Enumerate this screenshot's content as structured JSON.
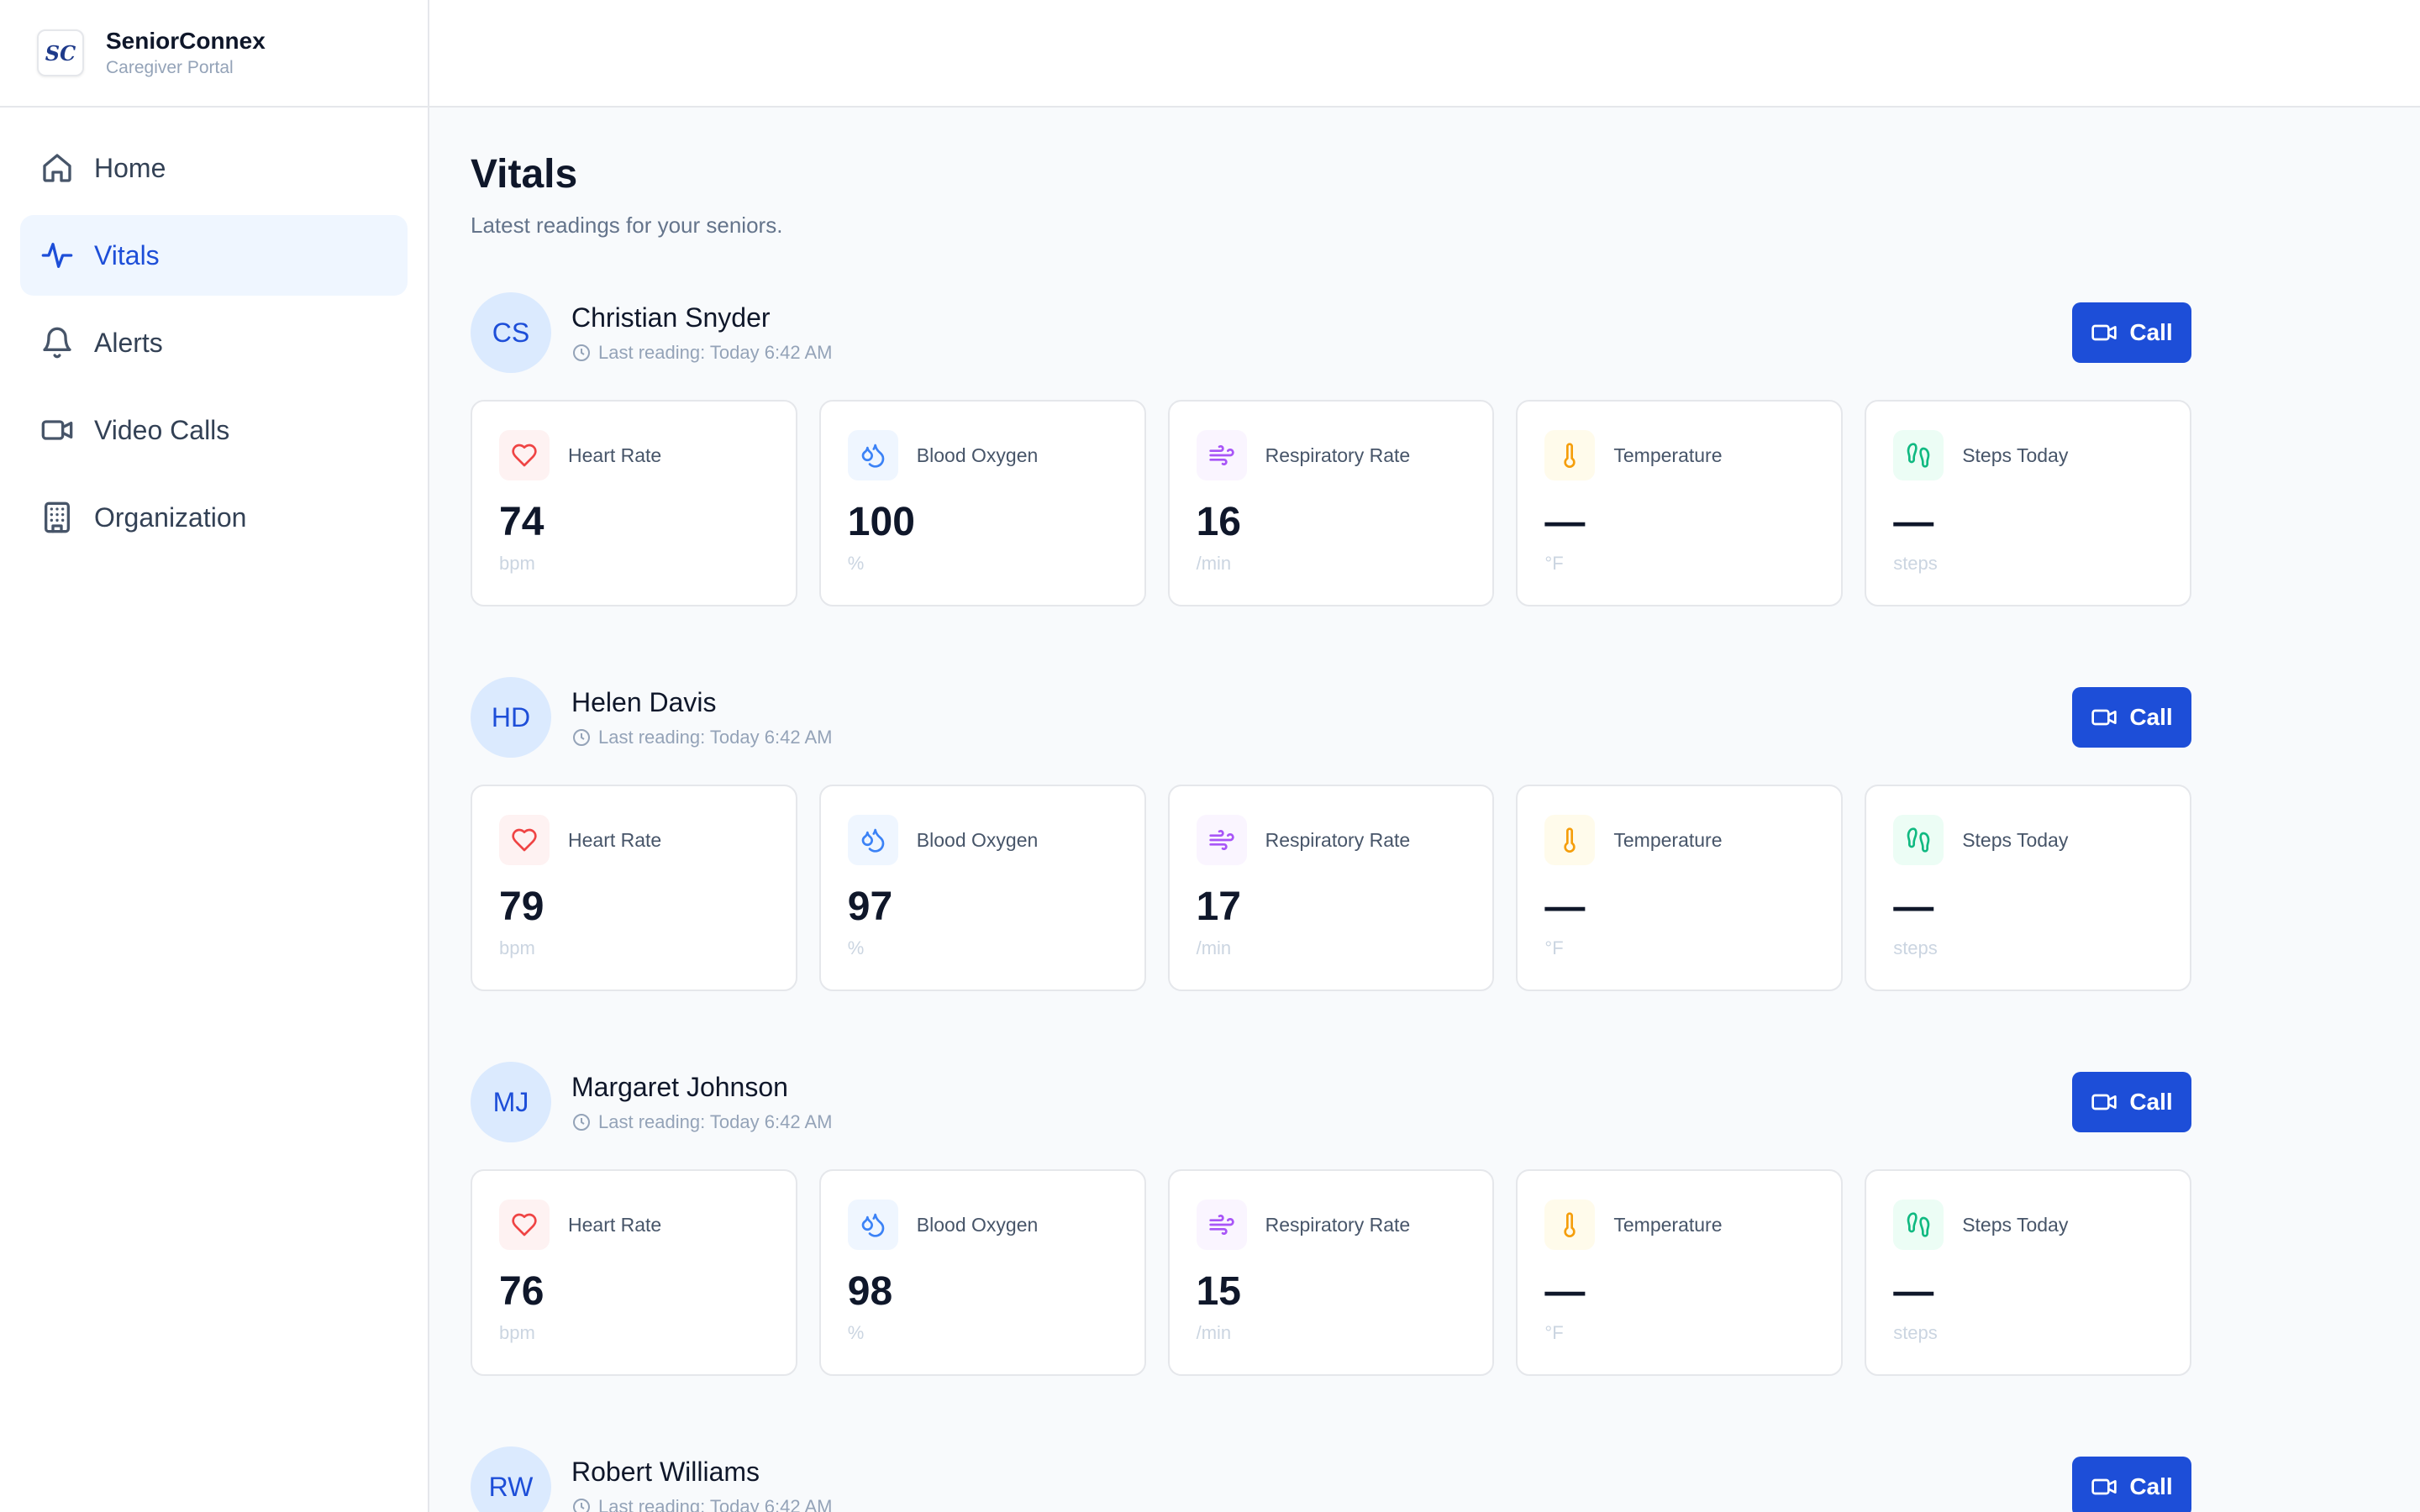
{
  "brand": {
    "name": "SeniorConnex",
    "subtitle": "Caregiver Portal",
    "logo_text": "SC"
  },
  "nav": [
    {
      "label": "Home",
      "icon": "home-icon",
      "active": false
    },
    {
      "label": "Vitals",
      "icon": "activity-icon",
      "active": true
    },
    {
      "label": "Alerts",
      "icon": "bell-icon",
      "active": false
    },
    {
      "label": "Video Calls",
      "icon": "video-icon",
      "active": false
    },
    {
      "label": "Organization",
      "icon": "building-icon",
      "active": false
    }
  ],
  "page": {
    "title": "Vitals",
    "subtitle": "Latest readings for your seniors."
  },
  "call_label": "Call",
  "vital_labels": {
    "heart": "Heart Rate",
    "oxygen": "Blood Oxygen",
    "resp": "Respiratory Rate",
    "temp": "Temperature",
    "steps": "Steps Today"
  },
  "vital_units": {
    "heart": "bpm",
    "oxygen": "%",
    "resp": "/min",
    "temp": "°F",
    "steps": "steps"
  },
  "seniors": [
    {
      "initials": "CS",
      "name": "Christian Snyder",
      "last_reading": "Last reading: Today 6:42 AM",
      "heart": "74",
      "oxygen": "100",
      "resp": "16",
      "temp": "—",
      "steps": "—"
    },
    {
      "initials": "HD",
      "name": "Helen Davis",
      "last_reading": "Last reading: Today 6:42 AM",
      "heart": "79",
      "oxygen": "97",
      "resp": "17",
      "temp": "—",
      "steps": "—"
    },
    {
      "initials": "MJ",
      "name": "Margaret Johnson",
      "last_reading": "Last reading: Today 6:42 AM",
      "heart": "76",
      "oxygen": "98",
      "resp": "15",
      "temp": "—",
      "steps": "—"
    },
    {
      "initials": "RW",
      "name": "Robert Williams",
      "last_reading": "Last reading: Today 6:42 AM",
      "heart": "",
      "oxygen": "",
      "resp": "",
      "temp": "",
      "steps": ""
    }
  ],
  "colors": {
    "accent": "#1d4ed8",
    "active_bg": "#eff6ff"
  }
}
